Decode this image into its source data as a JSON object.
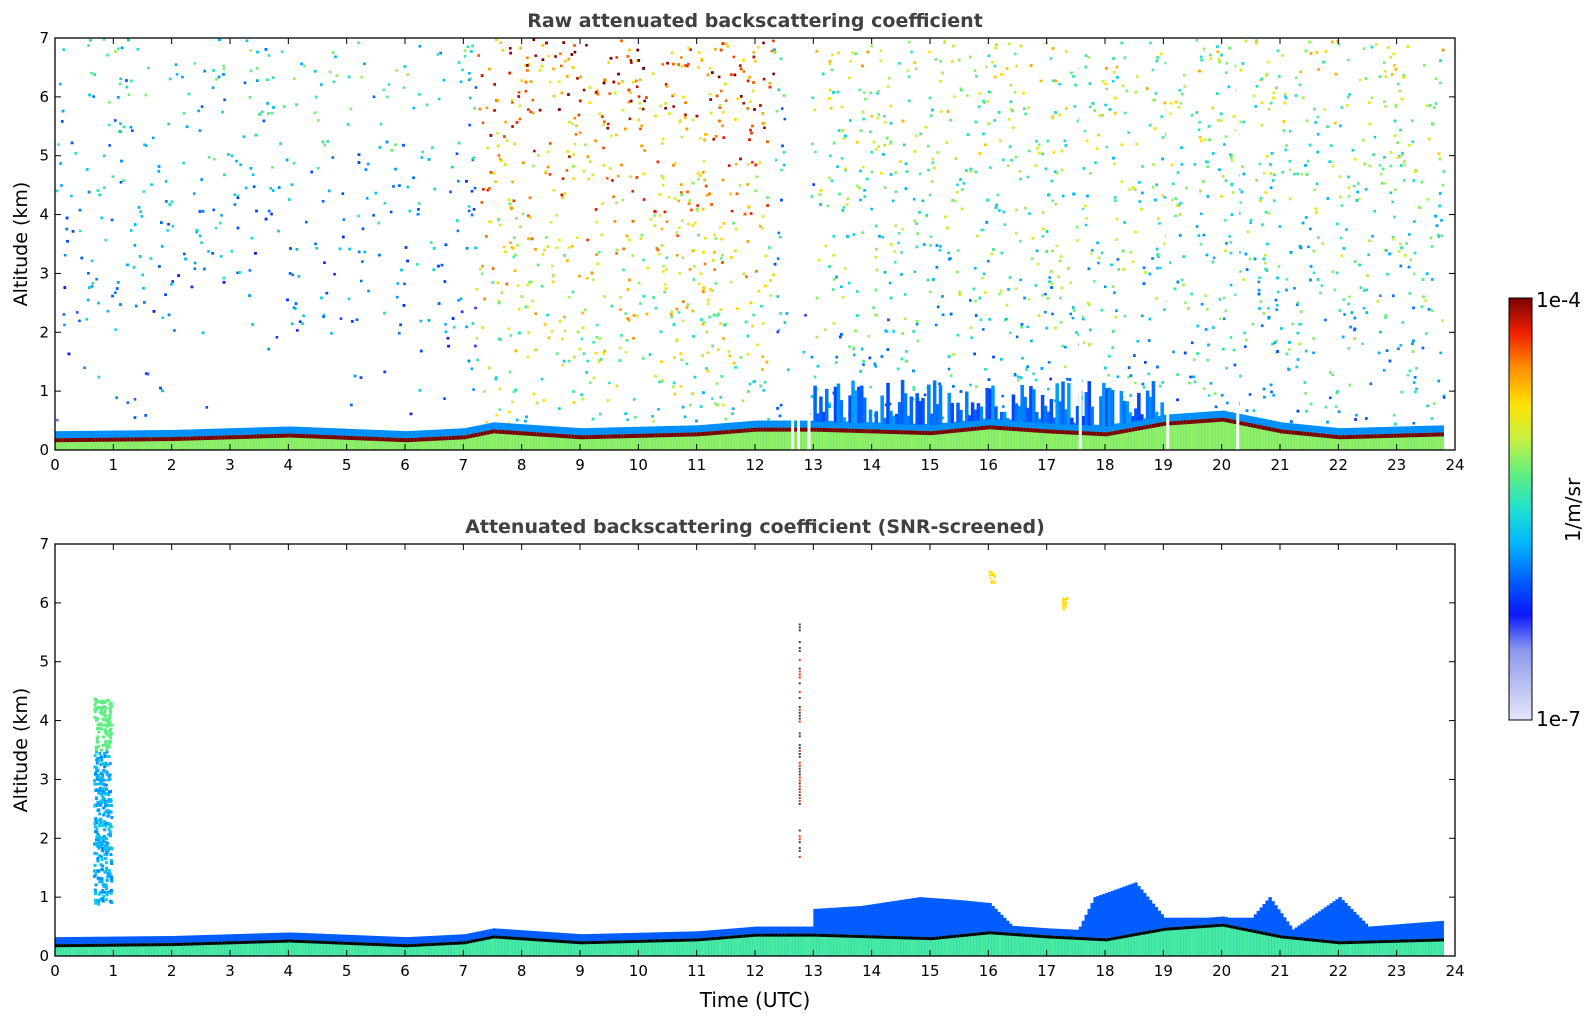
{
  "chart_data": [
    {
      "type": "heatmap",
      "title": "Raw attenuated backscattering coefficient",
      "xlabel": "",
      "ylabel": "Altitude (km)",
      "xlim": [
        0,
        24
      ],
      "ylim": [
        0,
        7
      ],
      "xticks": [
        "0",
        "1",
        "2",
        "3",
        "4",
        "5",
        "6",
        "7",
        "8",
        "9",
        "10",
        "11",
        "12",
        "13",
        "14",
        "15",
        "16",
        "17",
        "18",
        "19",
        "20",
        "21",
        "22",
        "23",
        "24"
      ],
      "yticks": [
        "0",
        "1",
        "2",
        "3",
        "4",
        "5",
        "6",
        "7"
      ],
      "grid": false,
      "boundary_layer_km": [
        [
          0,
          0.2
        ],
        [
          2,
          0.22
        ],
        [
          4,
          0.28
        ],
        [
          6,
          0.2
        ],
        [
          7,
          0.25
        ],
        [
          7.5,
          0.35
        ],
        [
          9,
          0.25
        ],
        [
          11,
          0.3
        ],
        [
          12,
          0.38
        ],
        [
          13,
          0.38
        ],
        [
          15,
          0.32
        ],
        [
          16,
          0.42
        ],
        [
          17,
          0.35
        ],
        [
          18,
          0.3
        ],
        [
          19,
          0.48
        ],
        [
          20,
          0.55
        ],
        [
          21,
          0.35
        ],
        [
          22,
          0.25
        ],
        [
          23.8,
          0.3
        ]
      ]
    },
    {
      "type": "heatmap",
      "title": "Attenuated backscattering coefficient (SNR-screened)",
      "xlabel": "Time (UTC)",
      "ylabel": "Altitude (km)",
      "xlim": [
        0,
        24
      ],
      "ylim": [
        0,
        7
      ],
      "xticks": [
        "0",
        "1",
        "2",
        "3",
        "4",
        "5",
        "6",
        "7",
        "8",
        "9",
        "10",
        "11",
        "12",
        "13",
        "14",
        "15",
        "16",
        "17",
        "18",
        "19",
        "20",
        "21",
        "22",
        "23",
        "24"
      ],
      "yticks": [
        "0",
        "1",
        "2",
        "3",
        "4",
        "5",
        "6",
        "7"
      ],
      "grid": false,
      "cloud_feature": {
        "time_utc": [
          0.65,
          0.95
        ],
        "altitude_km": [
          0.9,
          4.4
        ]
      },
      "mixed_layer_tops_km": [
        [
          13,
          0.8
        ],
        [
          13.8,
          0.85
        ],
        [
          14.8,
          1.0
        ],
        [
          15.5,
          0.95
        ],
        [
          16.0,
          0.9
        ],
        [
          16.5,
          0.4
        ],
        [
          17.5,
          0.4
        ],
        [
          17.8,
          1.0
        ],
        [
          18.5,
          1.25
        ],
        [
          19.0,
          0.65
        ],
        [
          20.5,
          0.65
        ],
        [
          20.8,
          1.0
        ],
        [
          21.2,
          0.45
        ],
        [
          22.0,
          1.0
        ],
        [
          22.5,
          0.5
        ],
        [
          23.8,
          0.6
        ]
      ]
    }
  ],
  "colorbar": {
    "label": "1/m/sr",
    "max_label": "1e-4",
    "min_label": "1e-7",
    "scale": "log",
    "range": [
      1e-07,
      0.0001
    ],
    "colormap": "jet-like",
    "colors": [
      "#e4e7f8",
      "#b8c0f2",
      "#8a97ec",
      "#0a17ff",
      "#0060ff",
      "#00b4ff",
      "#20e0d0",
      "#60f080",
      "#c8f040",
      "#ffe000",
      "#ff9000",
      "#f02000",
      "#7a0000"
    ]
  }
}
